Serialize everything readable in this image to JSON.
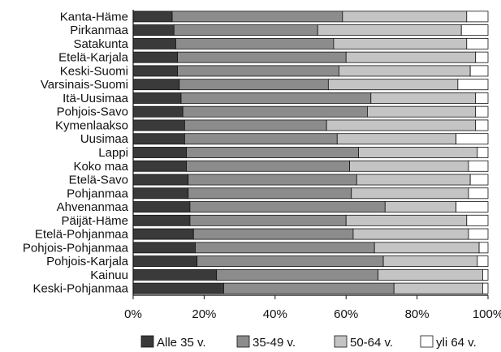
{
  "chart_data": {
    "type": "bar",
    "orientation": "horizontal",
    "stacked": true,
    "title": "",
    "xlabel": "",
    "ylabel": "",
    "xlim": [
      0,
      100
    ],
    "x_ticks": [
      "0%",
      "20%",
      "40%",
      "60%",
      "80%",
      "100%"
    ],
    "legend_position": "bottom",
    "grid": false,
    "categories": [
      "Kanta-Häme",
      "Pirkanmaa",
      "Satakunta",
      "Etelä-Karjala",
      "Keski-Suomi",
      "Varsinais-Suomi",
      "Itä-Uusimaa",
      "Pohjois-Savo",
      "Kymenlaakso",
      "Uusimaa",
      "Lappi",
      "Koko maa",
      "Etelä-Savo",
      "Pohjanmaa",
      "Ahvenanmaa",
      "Päijät-Häme",
      "Etelä-Pohjanmaa",
      "Pohjois-Pohjanmaa",
      "Pohjois-Karjala",
      "Kainuu",
      "Keski-Pohjanmaa"
    ],
    "series": [
      {
        "name": "Alle 35 v.",
        "color": "#3a3a3a",
        "values": [
          11,
          11.5,
          12,
          12.5,
          12.5,
          13,
          13.5,
          14,
          14.5,
          14.5,
          15,
          15,
          15.5,
          15.5,
          16,
          16,
          17,
          17.5,
          18,
          23.5,
          25.5
        ]
      },
      {
        "name": "35-49 v.",
        "color": "#8c8c8c",
        "values": [
          48,
          40.5,
          44.5,
          47.5,
          45.5,
          42,
          53.5,
          52,
          40,
          43,
          48.5,
          46,
          47.5,
          46,
          55,
          44,
          45,
          50.5,
          52.5,
          45.5,
          48
        ]
      },
      {
        "name": "50-64 v.",
        "color": "#c4c4c4",
        "values": [
          35,
          40.5,
          37.5,
          36.5,
          37,
          36.5,
          29.5,
          30.5,
          42,
          33.5,
          33.5,
          33.5,
          32,
          33,
          20,
          34,
          32.5,
          29.5,
          26.5,
          29.5,
          25
        ]
      },
      {
        "name": "yli 64 v.",
        "color": "#ffffff",
        "values": [
          6,
          7.5,
          6,
          3.5,
          5,
          8.5,
          3.5,
          3.5,
          3.5,
          9,
          3,
          5.5,
          5,
          5.5,
          9,
          6,
          5.5,
          2.5,
          3,
          1.5,
          1.5
        ]
      }
    ]
  }
}
